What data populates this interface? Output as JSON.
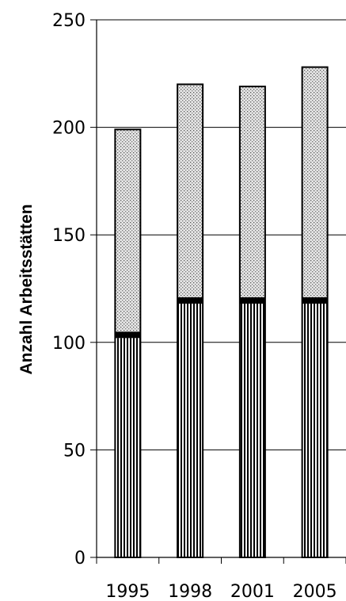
{
  "chart_data": {
    "type": "bar",
    "stacked": true,
    "categories": [
      "1995",
      "1998",
      "2001",
      "2005"
    ],
    "series": [
      {
        "values": [
          102,
          118,
          118,
          118
        ],
        "pattern": "vertical-stripes"
      },
      {
        "values": [
          3,
          3,
          3,
          3
        ],
        "pattern": "solid-black"
      },
      {
        "values": [
          94,
          99,
          98,
          107
        ],
        "pattern": "dots"
      }
    ],
    "totals": [
      199,
      220,
      219,
      228
    ],
    "title": "",
    "xlabel": "",
    "ylabel": "Anzahl Arbeitsstätten",
    "ylim": [
      0,
      250
    ],
    "yticks": [
      0,
      50,
      100,
      150,
      200,
      250
    ],
    "grid": true,
    "legend": "none"
  }
}
